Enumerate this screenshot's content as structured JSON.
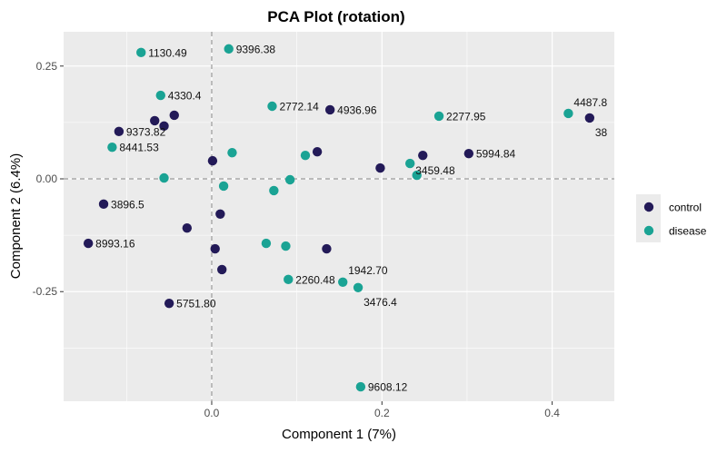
{
  "chart_data": {
    "type": "scatter",
    "title": "PCA Plot (rotation)",
    "xlabel": "Component 1 (7%)",
    "ylabel": "Component 2 (6.4%)",
    "xlim": [
      -0.174,
      0.473
    ],
    "ylim": [
      -0.493,
      0.326
    ],
    "xticks": [
      {
        "v": 0.0,
        "label": "0.0"
      },
      {
        "v": 0.2,
        "label": "0.2"
      },
      {
        "v": 0.4,
        "label": "0.4"
      }
    ],
    "yticks": [
      {
        "v": 0.25,
        "label": "0.25"
      },
      {
        "v": 0.0,
        "label": "0.00"
      },
      {
        "v": -0.25,
        "label": "-0.25"
      }
    ],
    "grid": true,
    "reference_lines": {
      "x": 0,
      "y": 0,
      "style": "dashed"
    },
    "legend_position": "right",
    "series": [
      {
        "name": "control",
        "color": "#231a58",
        "points": [
          {
            "x": -0.109,
            "y": 0.105,
            "label": "9373.82"
          },
          {
            "x": -0.067,
            "y": 0.129
          },
          {
            "x": -0.056,
            "y": 0.117
          },
          {
            "x": -0.044,
            "y": 0.141
          },
          {
            "x": 0.001,
            "y": 0.04
          },
          {
            "x": -0.127,
            "y": -0.056,
            "label": "3896.5"
          },
          {
            "x": -0.029,
            "y": -0.109
          },
          {
            "x": 0.01,
            "y": -0.078
          },
          {
            "x": 0.004,
            "y": -0.155
          },
          {
            "x": 0.012,
            "y": -0.201
          },
          {
            "x": -0.145,
            "y": -0.143,
            "label": "8993.16"
          },
          {
            "x": -0.05,
            "y": -0.276,
            "label": "5751.80"
          },
          {
            "x": 0.139,
            "y": 0.153,
            "label": "4936.96"
          },
          {
            "x": 0.124,
            "y": 0.06
          },
          {
            "x": 0.198,
            "y": 0.024
          },
          {
            "x": 0.248,
            "y": 0.052,
            "label": "3459.48"
          },
          {
            "x": 0.302,
            "y": 0.056,
            "label": "5994.84"
          },
          {
            "x": 0.444,
            "y": 0.135,
            "label": "38"
          },
          {
            "x": 0.135,
            "y": -0.155
          }
        ]
      },
      {
        "name": "disease",
        "color": "#1aa394",
        "points": [
          {
            "x": -0.083,
            "y": 0.28,
            "label": "1130.49"
          },
          {
            "x": 0.02,
            "y": 0.288,
            "label": "9396.38"
          },
          {
            "x": -0.06,
            "y": 0.185,
            "label": "4330.4"
          },
          {
            "x": -0.117,
            "y": 0.07,
            "label": "8441.53"
          },
          {
            "x": -0.056,
            "y": 0.002
          },
          {
            "x": 0.024,
            "y": 0.058
          },
          {
            "x": 0.014,
            "y": -0.016
          },
          {
            "x": 0.071,
            "y": 0.161,
            "label": "2772.14"
          },
          {
            "x": 0.073,
            "y": -0.026
          },
          {
            "x": 0.092,
            "y": -0.002
          },
          {
            "x": 0.11,
            "y": 0.052
          },
          {
            "x": 0.064,
            "y": -0.143
          },
          {
            "x": 0.087,
            "y": -0.149
          },
          {
            "x": 0.09,
            "y": -0.223,
            "label": "2260.48"
          },
          {
            "x": 0.154,
            "y": -0.229,
            "label": "1942.70"
          },
          {
            "x": 0.172,
            "y": -0.241,
            "label": "3476.4"
          },
          {
            "x": 0.233,
            "y": 0.034
          },
          {
            "x": 0.241,
            "y": 0.008
          },
          {
            "x": 0.267,
            "y": 0.139,
            "label": "2277.95"
          },
          {
            "x": 0.419,
            "y": 0.145,
            "label": "4487.8"
          },
          {
            "x": 0.175,
            "y": -0.461,
            "label": "9608.12"
          }
        ]
      }
    ]
  }
}
